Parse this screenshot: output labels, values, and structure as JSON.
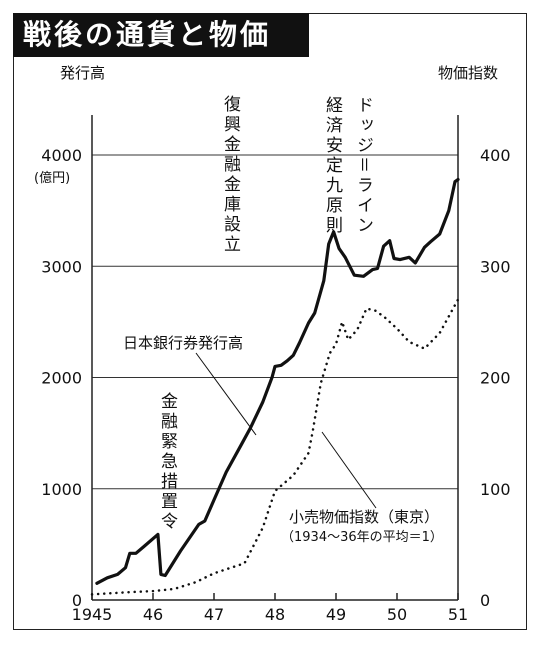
{
  "chart_data": {
    "type": "line",
    "title": "戦後の通貨と物価",
    "y_left_label": "発行高",
    "y_left_unit": "(億円)",
    "y_right_label": "物価指数",
    "y_left_ticks": [
      "0",
      "1000",
      "2000",
      "3000",
      "4000"
    ],
    "y_right_ticks": [
      "0",
      "100",
      "200",
      "300",
      "400"
    ],
    "x_ticks": [
      "1945",
      "46",
      "47",
      "48",
      "49",
      "50",
      "51"
    ],
    "ylim_left": [
      0,
      4000
    ],
    "ylim_right": [
      0,
      400
    ],
    "xlim": [
      1945,
      1951
    ],
    "series": [
      {
        "name": "日本銀行券発行高",
        "axis": "left",
        "style": "solid",
        "x": [
          1945.08,
          1945.25,
          1945.42,
          1945.55,
          1945.62,
          1945.72,
          1945.85,
          1946.08,
          1946.13,
          1946.2,
          1946.45,
          1946.75,
          1946.85,
          1947.0,
          1947.2,
          1947.45,
          1947.6,
          1947.8,
          1947.95,
          1948.0,
          1948.1,
          1948.2,
          1948.3,
          1948.4,
          1948.55,
          1948.65,
          1948.8,
          1948.88,
          1948.96,
          1949.05,
          1949.15,
          1949.3,
          1949.45,
          1949.6,
          1949.68,
          1949.78,
          1949.88,
          1949.95,
          1950.05,
          1950.2,
          1950.3,
          1950.45,
          1950.55,
          1950.7,
          1950.85,
          1950.95,
          1951.0
        ],
        "values": [
          150,
          200,
          230,
          290,
          420,
          420,
          480,
          590,
          230,
          220,
          440,
          680,
          710,
          900,
          1150,
          1400,
          1550,
          1780,
          2000,
          2100,
          2110,
          2150,
          2200,
          2310,
          2490,
          2580,
          2870,
          3200,
          3310,
          3160,
          3080,
          2920,
          2910,
          2970,
          2980,
          3180,
          3230,
          3070,
          3060,
          3080,
          3030,
          3170,
          3220,
          3290,
          3500,
          3760,
          3780
        ]
      },
      {
        "name": "小売物価指数（東京）",
        "axis": "right",
        "style": "dotted",
        "note": "（1934～36年の平均＝1）",
        "x": [
          1945.0,
          1945.6,
          1946.0,
          1946.35,
          1946.7,
          1947.0,
          1947.5,
          1947.8,
          1948.0,
          1948.3,
          1948.55,
          1948.62,
          1948.75,
          1948.9,
          1949.0,
          1949.1,
          1949.2,
          1949.35,
          1949.5,
          1949.65,
          1949.8,
          1950.0,
          1950.2,
          1950.45,
          1950.7,
          1951.0
        ],
        "values": [
          5,
          7,
          8,
          10,
          16,
          24,
          33,
          65,
          98,
          112,
          132,
          152,
          195,
          222,
          230,
          250,
          234,
          243,
          262,
          260,
          254,
          244,
          232,
          226,
          240,
          270
        ]
      }
    ],
    "annotations": [
      "金融緊急措置令",
      "復興金融金庫設立",
      "経済安定九原則",
      "ドッジ＝ライン"
    ]
  }
}
